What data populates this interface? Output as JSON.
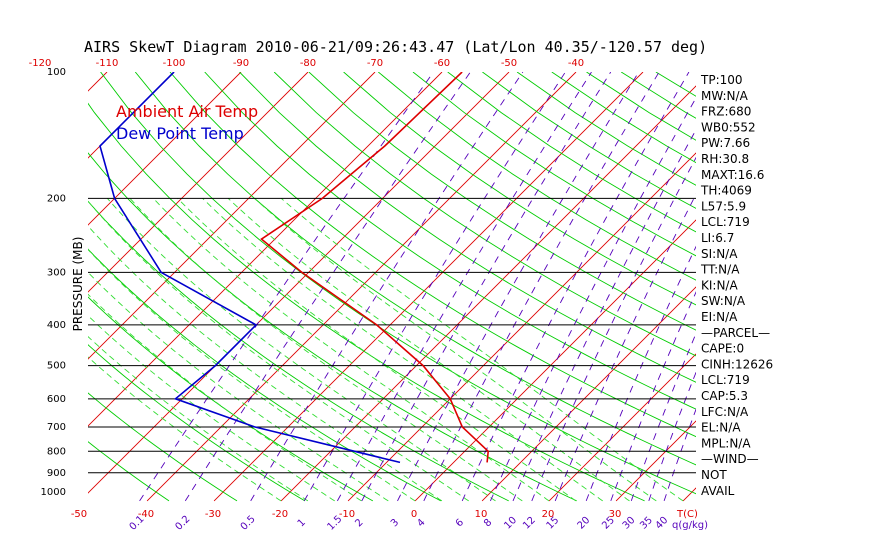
{
  "chart_data": {
    "type": "line",
    "title": "AIRS SkewT Diagram 2010-06-21/09:26:43.47 (Lat/Lon 40.35/-120.57 deg)",
    "ylabel": "PRESSURE (MB)",
    "xlabel": "T(C)",
    "mixing_ratio_label": "q(g/kg)",
    "y_scale": "log",
    "ylim": [
      1050,
      100
    ],
    "xlim_bottom": [
      -50,
      40
    ],
    "pressure_ticks": [
      100,
      200,
      300,
      400,
      500,
      600,
      700,
      800,
      900,
      1000
    ],
    "pressure_tick_labels": [
      "100",
      "200",
      "300",
      "400",
      "500",
      "600",
      "700",
      "800",
      "900",
      "1000"
    ],
    "isobar_lines": [
      200,
      300,
      400,
      500,
      600,
      700,
      800,
      900
    ],
    "top_temp_ticks": [
      -120,
      -110,
      -100,
      -90,
      -80,
      -70,
      -60,
      -50,
      -40
    ],
    "top_temp_tick_labels": [
      "-120",
      "-110",
      "-100",
      "-90",
      "-80",
      "-70",
      "-60",
      "-50",
      "-40"
    ],
    "bottom_temp_ticks": [
      -50,
      -40,
      -30,
      -20,
      -10,
      0,
      10,
      20,
      30
    ],
    "bottom_temp_tick_labels": [
      "-50",
      "-40",
      "-30",
      "-20",
      "-10",
      "0",
      "10",
      "20",
      "30"
    ],
    "mixing_ratio_ticks": [
      0.1,
      0.2,
      0.5,
      1,
      1.5,
      2,
      3,
      4,
      6,
      8,
      10,
      12,
      15,
      20,
      25,
      30,
      35,
      40
    ],
    "mixing_ratio_tick_labels": [
      "0.1",
      "0.2",
      "0.5",
      "1",
      "1.5",
      "2",
      "3",
      "4",
      "6",
      "8",
      "10",
      "12",
      "15",
      "20",
      "25",
      "30",
      "35",
      "40"
    ],
    "series": [
      {
        "name": "Ambient Air Temp",
        "color": "#dd0000",
        "points": [
          {
            "p": 100,
            "t": -57
          },
          {
            "p": 150,
            "t": -57.5
          },
          {
            "p": 200,
            "t": -59
          },
          {
            "p": 250,
            "t": -62
          },
          {
            "p": 300,
            "t": -51
          },
          {
            "p": 400,
            "t": -32
          },
          {
            "p": 500,
            "t": -19
          },
          {
            "p": 600,
            "t": -10
          },
          {
            "p": 700,
            "t": -4
          },
          {
            "p": 800,
            "t": 3.5
          },
          {
            "p": 850,
            "t": 5
          }
        ]
      },
      {
        "name": "Dew Point Temp",
        "color": "#0000cc",
        "points": [
          {
            "p": 100,
            "t": -100
          },
          {
            "p": 150,
            "t": -100
          },
          {
            "p": 200,
            "t": -90
          },
          {
            "p": 300,
            "t": -72
          },
          {
            "p": 400,
            "t": -50
          },
          {
            "p": 500,
            "t": -50
          },
          {
            "p": 600,
            "t": -51
          },
          {
            "p": 700,
            "t": -35
          },
          {
            "p": 850,
            "t": -8
          }
        ]
      }
    ],
    "indices": [
      "TP:100",
      "MW:N/A",
      "FRZ:680",
      "WB0:552",
      "PW:7.66",
      "RH:30.8",
      "MAXT:16.6",
      "TH:4069",
      "L57:5.9",
      "LCL:719",
      "LI:6.7",
      "SI:N/A",
      "TT:N/A",
      "KI:N/A",
      "SW:N/A",
      "EI:N/A",
      "—PARCEL—",
      "CAPE:0",
      "CINH:12626",
      "LCL:719",
      "CAP:5.3",
      "LFC:N/A",
      "EL:N/A",
      "MPL:N/A",
      "—WIND—",
      "NOT",
      "AVAIL"
    ],
    "grid": {
      "isotherm_color": "#dd0000",
      "dry_adiabat_color": "#00cc00",
      "moist_adiabat_color": "#33dd33",
      "mixing_ratio_color": "#5500bb",
      "isobar_color": "#000000"
    }
  }
}
